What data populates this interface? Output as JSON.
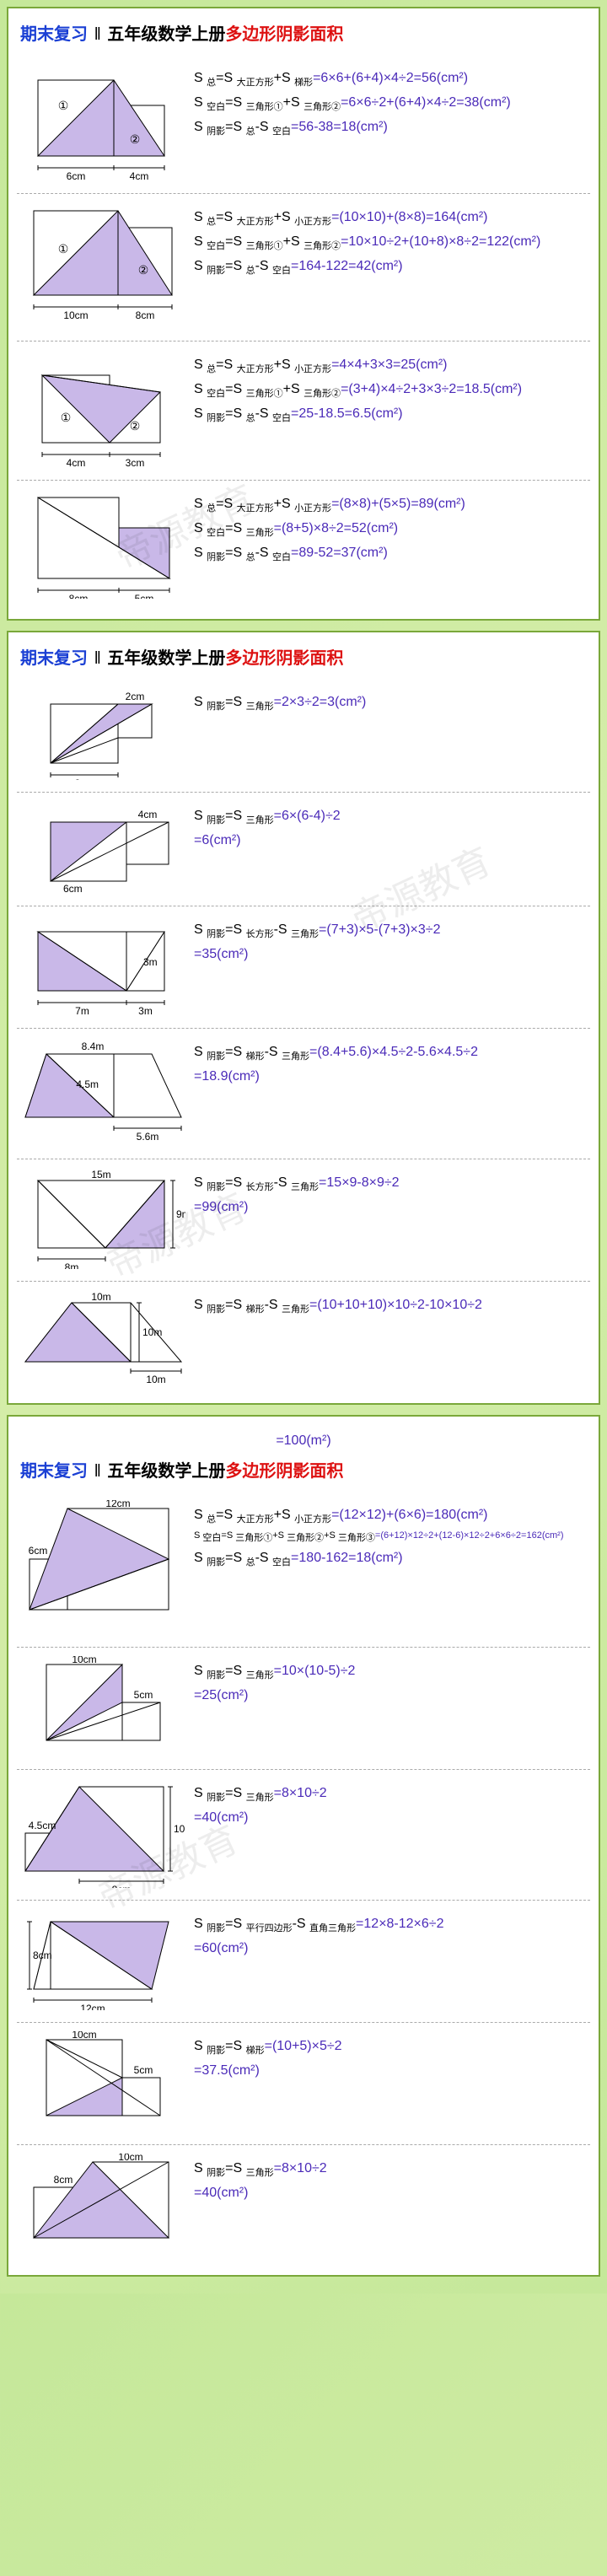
{
  "titles": {
    "prefix": "期末复习",
    "sep": "‖",
    "mid": "五年级数学上册",
    "suffix": "多边形阴影面积"
  },
  "watermark": "帝源教育",
  "colors": {
    "shade_fill": "#c9b8e8",
    "shade_fill_dark": "#a48cd8",
    "stroke": "#000",
    "eq_val": "#4a2ab8"
  },
  "pages": [
    {
      "continuation": null,
      "wm_pos": [
        [
          120,
          580
        ],
        [
          380,
          1000
        ]
      ],
      "problems": [
        {
          "fig": "p1f1",
          "eqs": [
            {
              "label": "S <sub>总</sub>=S <sub>大正方形</sub>+S <sub>梯形</sub>",
              "val": "=6×6+(6+4)×4÷2=56(cm²)"
            },
            {
              "label": "S <sub>空白</sub>=S <sub>三角形①</sub>+S <sub>三角形②</sub>",
              "val": "=6×6÷2+(6+4)×4÷2=38(cm²)"
            },
            {
              "label": "S <sub>阴影</sub>=S <sub>总</sub>-S <sub>空白</sub>",
              "val": "=56-38=18(cm²)"
            }
          ]
        },
        {
          "fig": "p1f2",
          "eqs": [
            {
              "label": "S <sub>总</sub>=S <sub>大正方形</sub>+S <sub>小正方形</sub>",
              "val": "=(10×10)+(8×8)=164(cm²)"
            },
            {
              "label": "S <sub>空白</sub>=S <sub>三角形①</sub>+S <sub>三角形②</sub>",
              "val": "=10×10÷2+(10+8)×8÷2=122(cm²)"
            },
            {
              "label": "S <sub>阴影</sub>=S <sub>总</sub>-S <sub>空白</sub>",
              "val": "=164-122=42(cm²)"
            }
          ]
        },
        {
          "fig": "p1f3",
          "eqs": [
            {
              "label": "S <sub>总</sub>=S <sub>大正方形</sub>+S <sub>小正方形</sub>",
              "val": "=4×4+3×3=25(cm²)"
            },
            {
              "label": "S <sub>空白</sub>=S <sub>三角形①</sub>+S <sub>三角形②</sub>",
              "val": "=(3+4)×4÷2+3×3÷2=18.5(cm²)"
            },
            {
              "label": "S <sub>阴影</sub>=S <sub>总</sub>-S <sub>空白</sub>",
              "val": "=25-18.5=6.5(cm²)"
            }
          ]
        },
        {
          "fig": "p1f4",
          "eqs": [
            {
              "label": "S <sub>总</sub>=S <sub>大正方形</sub>+S <sub>小正方形</sub>",
              "val": "=(8×8)+(5×5)=89(cm²)"
            },
            {
              "label": "S <sub>空白</sub>=S <sub>三角形</sub>",
              "val": "=(8+5)×8÷2=52(cm²)"
            },
            {
              "label": "S <sub>阴影</sub>=S <sub>总</sub>-S <sub>空白</sub>",
              "val": "=89-52=37(cm²)"
            }
          ]
        }
      ]
    },
    {
      "continuation": null,
      "wm_pos": [
        [
          110,
          680
        ],
        [
          400,
          270
        ]
      ],
      "problems": [
        {
          "fig": "p2f1",
          "eqs": [
            {
              "label": "S <sub>阴影</sub>=S <sub>三角形</sub>",
              "val": "=2×3÷2=3(cm²)"
            }
          ]
        },
        {
          "fig": "p2f2",
          "eqs": [
            {
              "label": "S <sub>阴影</sub>=S <sub>三角形</sub>",
              "val": "=6×(6-4)÷2"
            },
            {
              "label": "",
              "val": "=6(cm²)"
            }
          ]
        },
        {
          "fig": "p2f3",
          "eqs": [
            {
              "label": "S <sub>阴影</sub>=S <sub>长方形</sub>-S <sub>三角形</sub>",
              "val": "=(7+3)×5-(7+3)×3÷2"
            },
            {
              "label": "",
              "val": "=35(cm²)"
            }
          ]
        },
        {
          "fig": "p2f4",
          "eqs": [
            {
              "label": "S <sub>阴影</sub>=S <sub>梯形</sub>-S <sub>三角形</sub>",
              "val": "=(8.4+5.6)×4.5÷2-5.6×4.5÷2"
            },
            {
              "label": "",
              "val": "=18.9(cm²)"
            }
          ]
        },
        {
          "fig": "p2f5",
          "eqs": [
            {
              "label": "S <sub>阴影</sub>=S <sub>长方形</sub>-S <sub>三角形</sub>",
              "val": "=15×9-8×9÷2"
            },
            {
              "label": "",
              "val": "=99(cm²)"
            }
          ]
        },
        {
          "fig": "p2f6",
          "eqs": [
            {
              "label": "S <sub>阴影</sub>=S <sub>梯形</sub>-S <sub>三角形</sub>",
              "val": "=(10+10+10)×10÷2-10×10÷2"
            }
          ]
        }
      ]
    },
    {
      "continuation": "=100(m²)",
      "wm_pos": [
        [
          100,
          500
        ]
      ],
      "problems": [
        {
          "fig": "p3f1",
          "eqs": [
            {
              "label": "S <sub>总</sub>=S <sub>大正方形</sub>+S <sub>小正方形</sub>",
              "val": "=(12×12)+(6×6)=180(cm²)"
            },
            {
              "label": "S <sub>空白</sub>=S <sub>三角形①</sub>+S <sub>三角形②</sub>+S <sub>三角形③</sub>",
              "val": "=(6+12)×12÷2+(12-6)×12÷2+6×6÷2=162(cm²)",
              "small": true
            },
            {
              "label": "S <sub>阴影</sub>=S <sub>总</sub>-S <sub>空白</sub>",
              "val": "=180-162=18(cm²)"
            }
          ]
        },
        {
          "fig": "p3f2",
          "eqs": [
            {
              "label": "S <sub>阴影</sub>=S <sub>三角形</sub>",
              "val": "=10×(10-5)÷2"
            },
            {
              "label": "",
              "val": "=25(cm²)"
            }
          ]
        },
        {
          "fig": "p3f3",
          "eqs": [
            {
              "label": "S <sub>阴影</sub>=S <sub>三角形</sub>",
              "val": "=8×10÷2"
            },
            {
              "label": "",
              "val": "=40(cm²)"
            }
          ]
        },
        {
          "fig": "p3f4",
          "eqs": [
            {
              "label": "S <sub>阴影</sub>=S <sub>平行四边形</sub>-S <sub>直角三角形</sub>",
              "val": "=12×8-12×6÷2"
            },
            {
              "label": "",
              "val": "=60(cm²)"
            }
          ]
        },
        {
          "fig": "p3f5",
          "eqs": [
            {
              "label": "S <sub>阴影</sub>=S <sub>梯形</sub>",
              "val": "=(10+5)×5÷2"
            },
            {
              "label": "",
              "val": "=37.5(cm²)"
            }
          ]
        },
        {
          "fig": "p3f6",
          "eqs": [
            {
              "label": "S <sub>阴影</sub>=S <sub>三角形</sub>",
              "val": "=8×10÷2"
            },
            {
              "label": "",
              "val": "=40(cm²)"
            }
          ]
        }
      ]
    }
  ]
}
